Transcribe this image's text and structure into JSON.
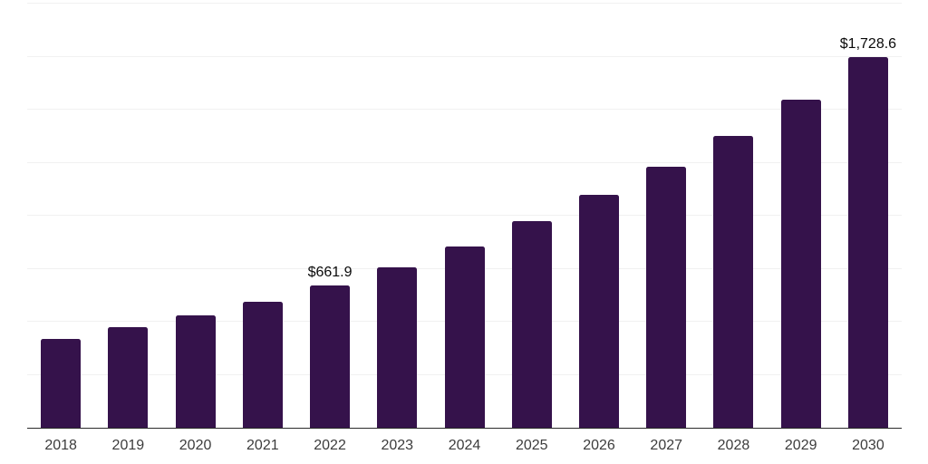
{
  "chart_data": {
    "type": "bar",
    "title": "",
    "xlabel": "",
    "ylabel": "",
    "categories": [
      "2018",
      "2019",
      "2020",
      "2021",
      "2022",
      "2023",
      "2024",
      "2025",
      "2026",
      "2027",
      "2028",
      "2029",
      "2030"
    ],
    "values": [
      412,
      466,
      522,
      586,
      661.9,
      747,
      845,
      961,
      1086,
      1216,
      1359,
      1531,
      1728.6
    ],
    "data_labels": {
      "2022": "$661.9",
      "2030": "$1,728.6"
    },
    "ylim": [
      0,
      1983
    ],
    "grid": {
      "horizontal": true,
      "line_count": 8,
      "color": "#f1f1f1"
    },
    "legend_position": "none",
    "bar_color": "#35124B",
    "axis_line_color": "#2b2b2b",
    "x_label_color": "#3c3c3c",
    "value_label_color": "#0a0a0a"
  }
}
